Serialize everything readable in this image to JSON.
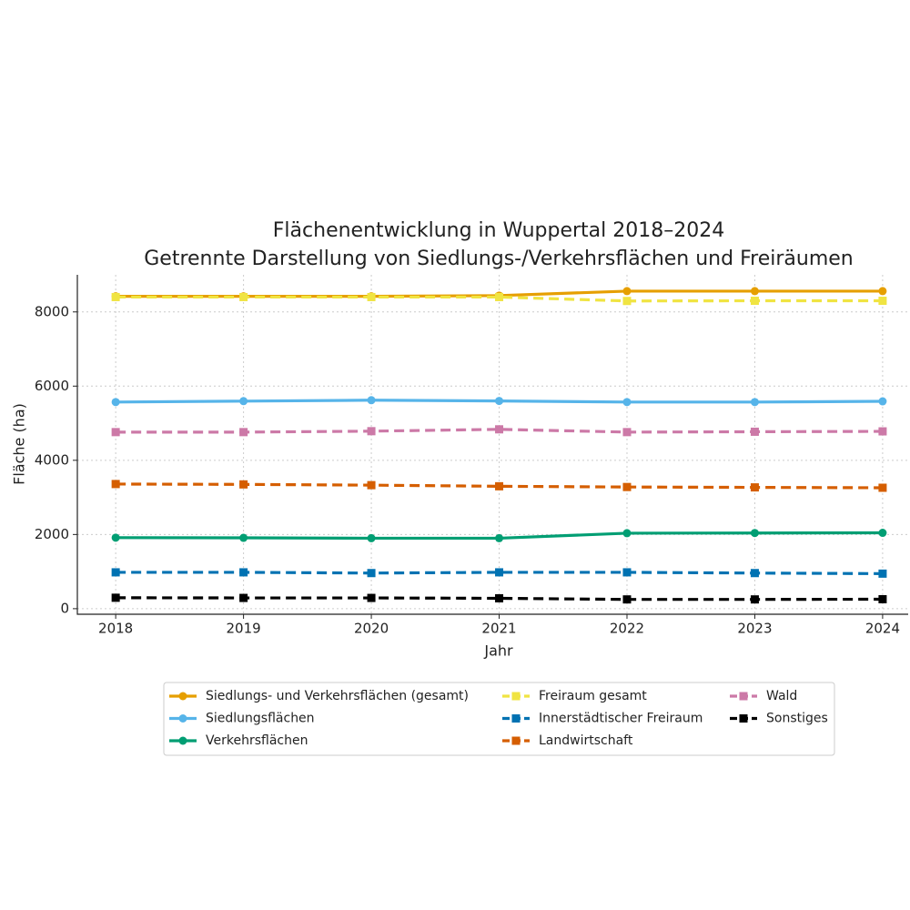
{
  "chart_data": {
    "type": "line",
    "title": "Flächenentwicklung in Wuppertal 2018–2024",
    "subtitle": "Getrennte Darstellung von Siedlungs-/Verkehrsflächen und Freiräumen",
    "x_label": "Jahr",
    "y_label": "Fläche (ha)",
    "x": [
      2018,
      2019,
      2020,
      2021,
      2022,
      2023,
      2024
    ],
    "xlim": [
      2017.7,
      2024.2
    ],
    "xticks": [
      2018,
      2019,
      2020,
      2021,
      2022,
      2023,
      2024
    ],
    "ylim": [
      -150,
      9000
    ],
    "yticks": [
      0,
      2000,
      4000,
      6000,
      8000
    ],
    "grid": true,
    "legend": "bottom",
    "series": [
      {
        "name": "Siedlungs- und Verkehrsflächen (gesamt)",
        "color": "#e69f00",
        "style": "solid",
        "marker": "circle",
        "values": [
          8420,
          8420,
          8420,
          8440,
          8560,
          8560,
          8560
        ]
      },
      {
        "name": "Siedlungsflächen",
        "color": "#56b4e9",
        "style": "solid",
        "marker": "circle",
        "values": [
          5570,
          5595,
          5620,
          5600,
          5570,
          5570,
          5590
        ]
      },
      {
        "name": "Verkehrsflächen",
        "color": "#009e73",
        "style": "solid",
        "marker": "circle",
        "values": [
          1915,
          1910,
          1900,
          1900,
          2035,
          2040,
          2045
        ]
      },
      {
        "name": "Freiraum gesamt",
        "color": "#f0e442",
        "style": "dashed",
        "marker": "square",
        "values": [
          8400,
          8400,
          8400,
          8400,
          8295,
          8300,
          8300
        ]
      },
      {
        "name": "Innerstädtischer Freiraum",
        "color": "#0072b2",
        "style": "dashed",
        "marker": "square",
        "values": [
          980,
          980,
          960,
          980,
          980,
          960,
          945
        ]
      },
      {
        "name": "Landwirtschaft",
        "color": "#d55e00",
        "style": "dashed",
        "marker": "square",
        "values": [
          3360,
          3350,
          3330,
          3300,
          3280,
          3270,
          3260
        ]
      },
      {
        "name": "Wald",
        "color": "#cc79a7",
        "style": "dashed",
        "marker": "square",
        "values": [
          4760,
          4760,
          4785,
          4835,
          4760,
          4770,
          4780
        ]
      },
      {
        "name": "Sonstiges",
        "color": "#000000",
        "style": "dashed",
        "marker": "square",
        "values": [
          295,
          290,
          290,
          280,
          250,
          250,
          255
        ]
      }
    ]
  }
}
